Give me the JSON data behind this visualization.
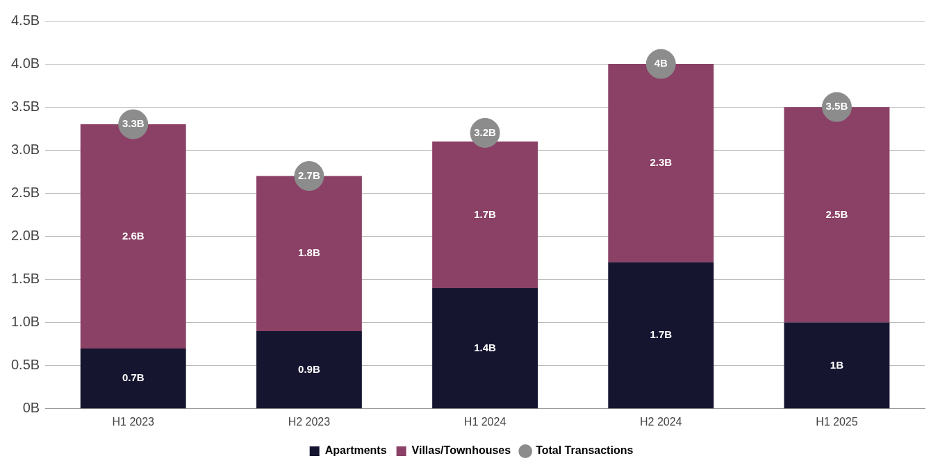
{
  "chart_data": {
    "type": "bar",
    "stacked": true,
    "categories": [
      "H1 2023",
      "H2 2023",
      "H1 2024",
      "H2 2024",
      "H1 2025"
    ],
    "series": [
      {
        "name": "Apartments",
        "color": "#161530",
        "values": [
          0.7,
          0.9,
          1.4,
          1.7,
          1
        ],
        "value_labels": [
          "0.7B",
          "0.9B",
          "1.4B",
          "1.7B",
          "1B"
        ]
      },
      {
        "name": "Villas/Townhouses",
        "color": "#8b4065",
        "values": [
          2.6,
          1.8,
          1.7,
          2.3,
          2.5
        ],
        "value_labels": [
          "2.6B",
          "1.8B",
          "1.7B",
          "2.3B",
          "2.5B"
        ]
      },
      {
        "name": "Total Transactions",
        "type": "scatter",
        "color": "#8c8c8c",
        "marker": "circle",
        "x": [
          "H1 2023",
          "H2 2023",
          "H1 2024",
          "H2 2024",
          "H1 2025"
        ],
        "values": [
          3.3,
          2.7,
          3.2,
          4,
          3.5
        ],
        "value_labels": [
          "3.3B",
          "2.7B",
          "3.2B",
          "4B",
          "3.5B"
        ]
      }
    ],
    "ylim": [
      0,
      4.5
    ],
    "yticks": [
      {
        "value": 0,
        "label": "0B"
      },
      {
        "value": 0.5,
        "label": "0.5B"
      },
      {
        "value": 1,
        "label": "1.0B"
      },
      {
        "value": 1.5,
        "label": "1.5B"
      },
      {
        "value": 2,
        "label": "2.0B"
      },
      {
        "value": 2.5,
        "label": "2.5B"
      },
      {
        "value": 3,
        "label": "3.0B"
      },
      {
        "value": 3.5,
        "label": "3.5B"
      },
      {
        "value": 4,
        "label": "4.0B"
      },
      {
        "value": 4.5,
        "label": "4.5B"
      }
    ],
    "grid": "y",
    "legend": "bottom"
  }
}
